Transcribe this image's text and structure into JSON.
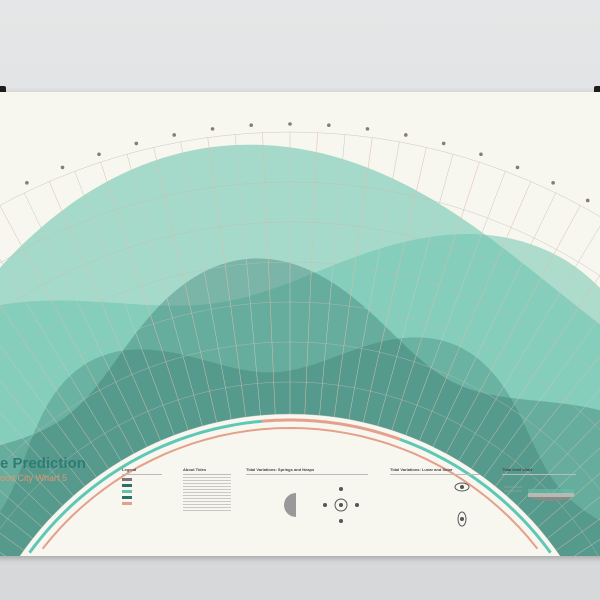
{
  "poster": {
    "title": "e Prediction",
    "subtitle": "ood City Wharf 5"
  },
  "panels": {
    "legend": "Legend",
    "about": "About Tides",
    "springs": "Tidal Variations: Springs and Neaps",
    "lunar": "Tidal Variations: Lunar and Solar",
    "tidal_level": "Tidal level chart"
  },
  "colors": {
    "tide_fill": "#63c2ab",
    "tide_dark": "#2f6f66",
    "accent_salmon": "#e4a08a",
    "accent_teal": "#5fc7b6",
    "background": "#f7f6ef"
  }
}
